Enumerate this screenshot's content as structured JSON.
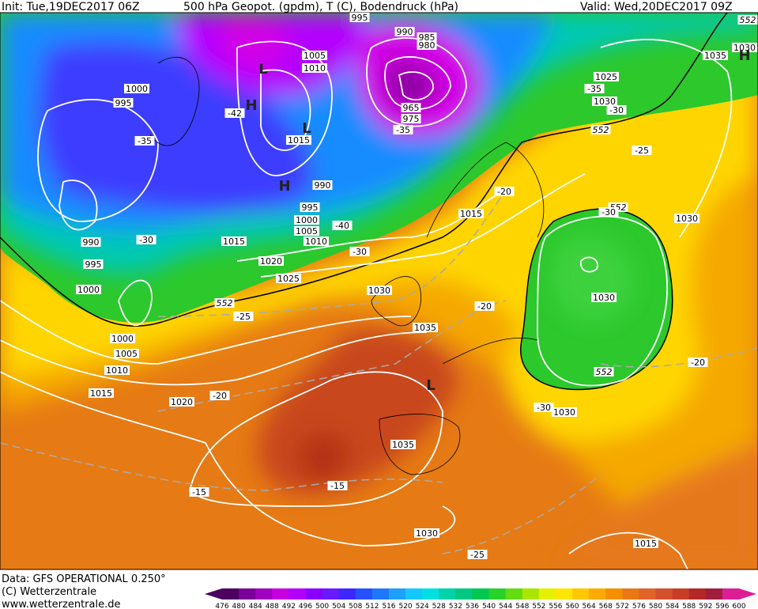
{
  "header": {
    "init": "Init: Tue,19DEC2017 06Z",
    "title": "500 hPa Geopot. (gpdm), T (C), Bodendruck (hPa)",
    "valid": "Valid: Wed,20DEC2017 09Z"
  },
  "footer": {
    "source": "Data: GFS OPERATIONAL 0.250°",
    "copyright": "(C) Wetterzentrale",
    "url": "www.wetterzentrale.de"
  },
  "legend": {
    "labels": [
      476,
      480,
      484,
      488,
      492,
      496,
      500,
      504,
      508,
      512,
      516,
      520,
      524,
      528,
      532,
      536,
      540,
      544,
      548,
      552,
      556,
      560,
      564,
      568,
      572,
      576,
      580,
      584,
      588,
      592,
      596,
      600
    ],
    "colors": [
      "#4b0060",
      "#7a0099",
      "#a000c0",
      "#c800e0",
      "#b400ff",
      "#8a00ff",
      "#6a1aff",
      "#3c28ff",
      "#2850ff",
      "#1e78ff",
      "#1ea0ff",
      "#14c8ff",
      "#00e0e0",
      "#00d2aa",
      "#00c882",
      "#00c850",
      "#28d228",
      "#64dc14",
      "#aae600",
      "#e6f000",
      "#ffe600",
      "#ffc800",
      "#ffaa00",
      "#f59000",
      "#ea7814",
      "#e06428",
      "#d2502d",
      "#c83c28",
      "#b42828",
      "#a01e3c",
      "#dc1e96"
    ]
  },
  "map_labels": [
    "995",
    "990",
    "985",
    "980",
    "1005",
    "1010",
    "1000",
    "995",
    "-42",
    "965",
    "975",
    "-35",
    "-35",
    "1015",
    "990",
    "995",
    "1000",
    "1005",
    "-40",
    "1010",
    "-30",
    "1015",
    "-30",
    "990",
    "995",
    "1020",
    "1025",
    "1000",
    "552",
    "-25",
    "1030",
    "1035",
    "-20",
    "1000",
    "1005",
    "1010",
    "1015",
    "1020",
    "-20",
    "1035",
    "-15",
    "-15",
    "1030",
    "-25",
    "1025",
    "-35",
    "1030",
    "-30",
    "552",
    "-25",
    "-20",
    "1015",
    "552",
    "-30",
    "1030",
    "1030",
    "552",
    "-20",
    "-30",
    "1030",
    "1015",
    "1035",
    "552",
    "1030",
    "H",
    "L",
    "H",
    "L",
    "H",
    "L"
  ]
}
